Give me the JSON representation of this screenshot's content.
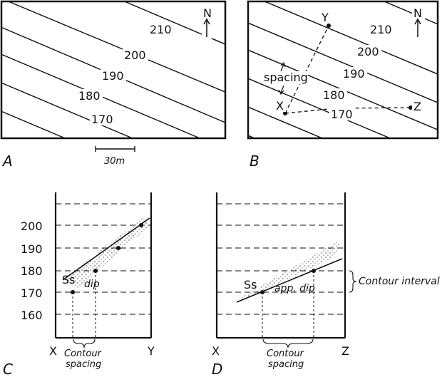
{
  "panels": {
    "a": {
      "label": "A",
      "contours": [
        "210",
        "200",
        "190",
        "180",
        "170"
      ],
      "north": "N",
      "scale": "30m"
    },
    "b": {
      "label": "B",
      "contours": [
        "210",
        "200",
        "190",
        "180",
        "170"
      ],
      "north": "N",
      "spacing": "spacing",
      "points": {
        "x": "X",
        "y": "Y",
        "z": "Z"
      }
    },
    "c": {
      "label": "C",
      "y_ticks": [
        "200",
        "190",
        "180",
        "170",
        "160"
      ],
      "rock": "Ss",
      "dip": "dip",
      "x_left": "X",
      "x_right": "Y",
      "spacing_1": "Contour",
      "spacing_2": "spacing"
    },
    "d": {
      "label": "D",
      "rock": "Ss",
      "dip": "app. dip",
      "x_left": "X",
      "x_right": "Z",
      "interval": "Contour interval",
      "spacing_1": "Contour",
      "spacing_2": "spacing"
    }
  }
}
